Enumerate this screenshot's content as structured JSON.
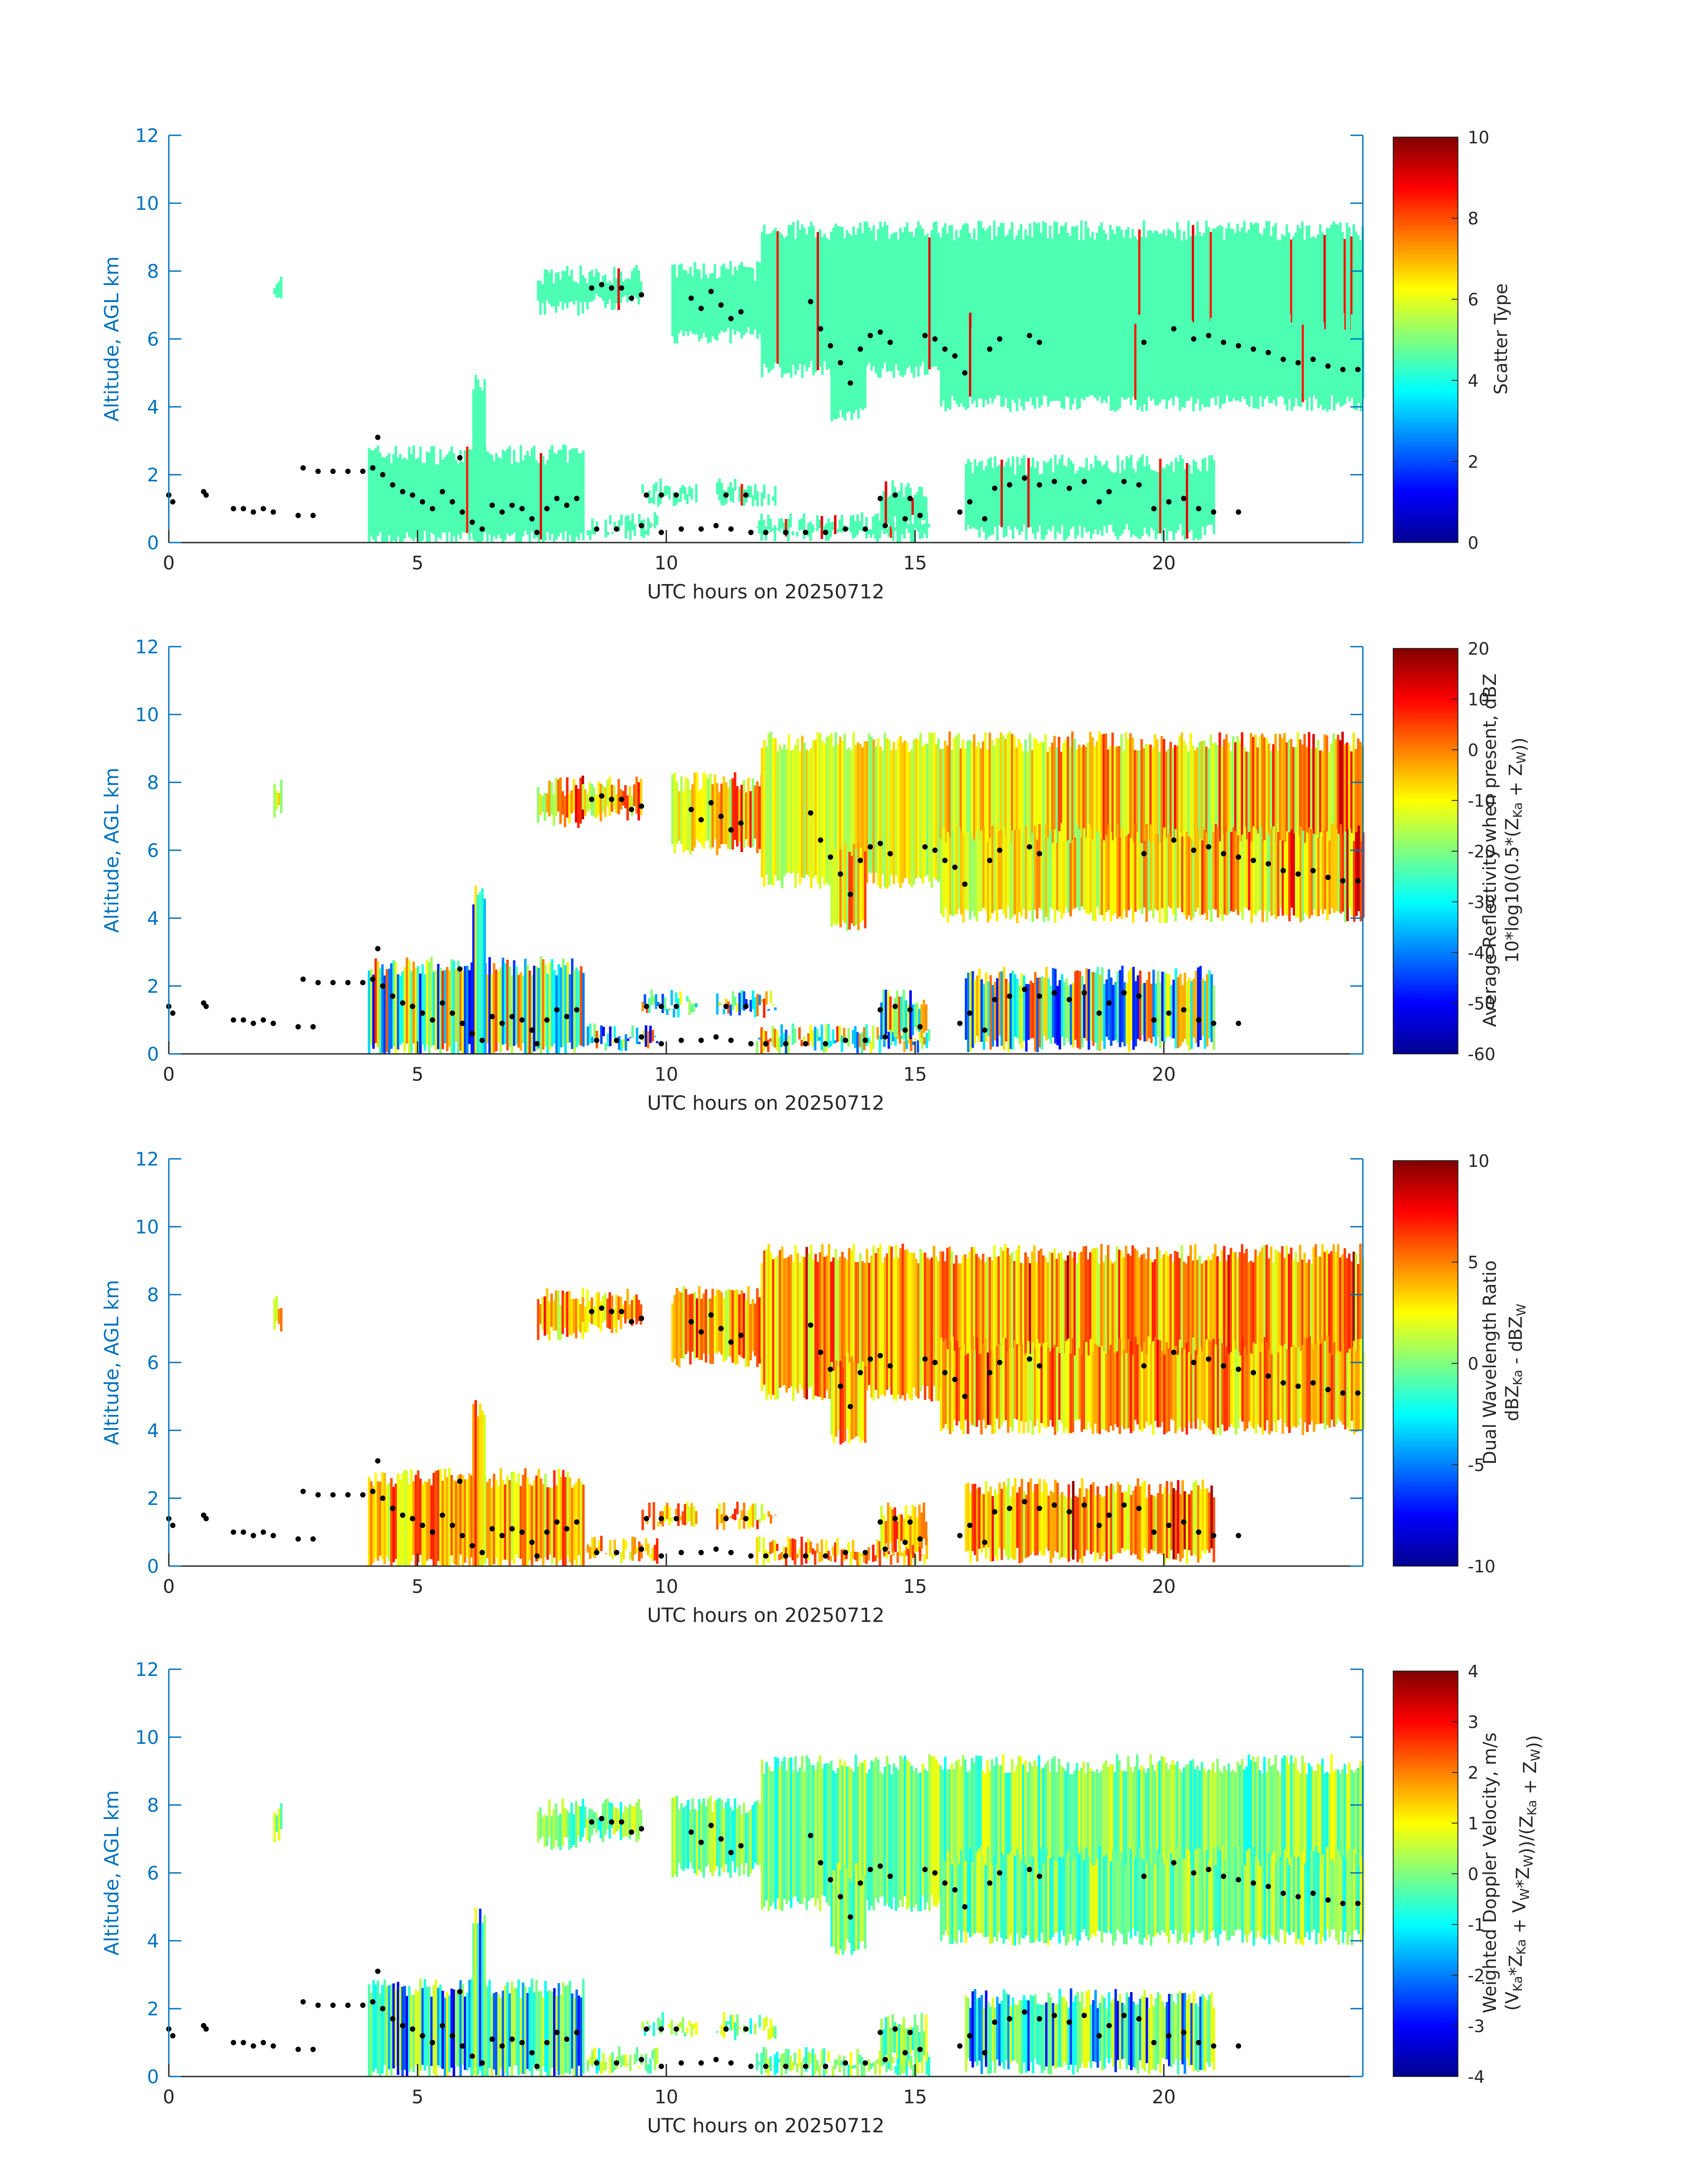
{
  "chart_data": [
    {
      "type": "heatmap",
      "panel": 1,
      "xlabel": "UTC hours on 20250712",
      "ylabel": "Altitude, AGL km",
      "xlim": [
        0,
        24
      ],
      "ylim": [
        0,
        12
      ],
      "xticks": [
        0,
        5,
        10,
        15,
        20
      ],
      "yticks": [
        0,
        2,
        4,
        6,
        8,
        10,
        12
      ],
      "colorbar": {
        "label_lines": [
          "Scatter Type"
        ],
        "range": [
          0,
          10
        ],
        "ticks": [
          0,
          2,
          4,
          6,
          8,
          10
        ],
        "colormap": "jet"
      },
      "dominant_value": 4.5,
      "overlay": "black dots marking cloud layer heights"
    },
    {
      "type": "heatmap",
      "panel": 2,
      "xlabel": "UTC hours on 20250712",
      "ylabel": "Altitude, AGL km",
      "xlim": [
        0,
        24
      ],
      "ylim": [
        0,
        12
      ],
      "xticks": [
        0,
        5,
        10,
        15,
        20
      ],
      "yticks": [
        0,
        2,
        4,
        6,
        8,
        10,
        12
      ],
      "colorbar": {
        "label_lines": [
          "Average Reflectivity when present, dBZ",
          "10*log10(0.5*(Z_Ka + Z_W))"
        ],
        "range": [
          -60,
          20
        ],
        "ticks": [
          -60,
          -50,
          -40,
          -30,
          -20,
          -10,
          0,
          10,
          20
        ],
        "colormap": "jet"
      },
      "overlay": "black dots marking cloud layer heights"
    },
    {
      "type": "heatmap",
      "panel": 3,
      "xlabel": "UTC hours on 20250712",
      "ylabel": "Altitude, AGL km",
      "xlim": [
        0,
        24
      ],
      "ylim": [
        0,
        12
      ],
      "xticks": [
        0,
        5,
        10,
        15,
        20
      ],
      "yticks": [
        0,
        2,
        4,
        6,
        8,
        10,
        12
      ],
      "colorbar": {
        "label_lines": [
          "Dual Wavelength Ratio",
          "dBZ_Ka - dBZ_W"
        ],
        "range": [
          -10,
          10
        ],
        "ticks": [
          -10,
          -5,
          0,
          5,
          10
        ],
        "colormap": "jet"
      },
      "overlay": "black dots marking cloud layer heights"
    },
    {
      "type": "heatmap",
      "panel": 4,
      "xlabel": "UTC hours on 20250712",
      "ylabel": "Altitude, AGL km",
      "xlim": [
        0,
        24
      ],
      "ylim": [
        0,
        12
      ],
      "xticks": [
        0,
        5,
        10,
        15,
        20
      ],
      "yticks": [
        0,
        2,
        4,
        6,
        8,
        10,
        12
      ],
      "colorbar": {
        "label_lines": [
          "Weighted Doppler Velocity, m/s",
          "(V_Ka*Z_Ka + V_W*Z_W))/(Z_Ka + Z_W))"
        ],
        "range": [
          -4,
          4
        ],
        "ticks": [
          -4,
          -3,
          -2,
          -1,
          0,
          1,
          2,
          3,
          4
        ],
        "colormap": "jet"
      },
      "overlay": "black dots marking cloud layer heights"
    }
  ],
  "cloud_regions": [
    {
      "t": [
        2.1,
        2.25
      ],
      "base": 7.0,
      "top": 7.8
    },
    {
      "t": [
        4.0,
        8.35
      ],
      "base": 0.0,
      "top": 2.6
    },
    {
      "t": [
        6.1,
        6.35
      ],
      "base": 0.0,
      "top": 4.7
    },
    {
      "t": [
        7.4,
        8.3
      ],
      "base": 6.8,
      "top": 7.9
    },
    {
      "t": [
        8.3,
        9.5
      ],
      "base": 7.0,
      "top": 7.9
    },
    {
      "t": [
        10.1,
        11.9
      ],
      "base": 6.0,
      "top": 8.0
    },
    {
      "t": [
        11.9,
        24.0
      ],
      "base": 5.0,
      "top": 9.2
    },
    {
      "t": [
        13.3,
        14.0
      ],
      "base": 3.7,
      "top": 6.0
    },
    {
      "t": [
        15.5,
        24.0
      ],
      "base": 4.0,
      "top": 6.5
    },
    {
      "t": [
        8.4,
        9.8
      ],
      "base": 0.2,
      "top": 0.6
    },
    {
      "t": [
        9.5,
        10.6
      ],
      "base": 1.2,
      "top": 1.6
    },
    {
      "t": [
        11.0,
        12.2
      ],
      "base": 1.2,
      "top": 1.6
    },
    {
      "t": [
        11.8,
        15.3
      ],
      "base": 0.1,
      "top": 0.6
    },
    {
      "t": [
        14.3,
        15.2
      ],
      "base": 0.5,
      "top": 1.6
    },
    {
      "t": [
        16.0,
        21.0
      ],
      "base": 0.2,
      "top": 2.3
    }
  ],
  "layer_dots": [
    {
      "t": 0.0,
      "h": 1.4
    },
    {
      "t": 0.08,
      "h": 1.2
    },
    {
      "t": 0.7,
      "h": 1.5
    },
    {
      "t": 0.75,
      "h": 1.4
    },
    {
      "t": 1.3,
      "h": 1.0
    },
    {
      "t": 1.5,
      "h": 1.0
    },
    {
      "t": 1.7,
      "h": 0.9
    },
    {
      "t": 1.9,
      "h": 1.0
    },
    {
      "t": 2.1,
      "h": 0.9
    },
    {
      "t": 2.6,
      "h": 0.8
    },
    {
      "t": 2.9,
      "h": 0.8
    },
    {
      "t": 2.7,
      "h": 2.2
    },
    {
      "t": 3.0,
      "h": 2.1
    },
    {
      "t": 3.3,
      "h": 2.1
    },
    {
      "t": 3.6,
      "h": 2.1
    },
    {
      "t": 3.9,
      "h": 2.1
    },
    {
      "t": 4.1,
      "h": 2.2
    },
    {
      "t": 4.2,
      "h": 3.1
    },
    {
      "t": 4.3,
      "h": 2.0
    },
    {
      "t": 4.5,
      "h": 1.7
    },
    {
      "t": 4.7,
      "h": 1.5
    },
    {
      "t": 4.9,
      "h": 1.4
    },
    {
      "t": 5.1,
      "h": 1.2
    },
    {
      "t": 5.3,
      "h": 1.0
    },
    {
      "t": 5.5,
      "h": 1.5
    },
    {
      "t": 5.7,
      "h": 1.2
    },
    {
      "t": 5.85,
      "h": 2.5
    },
    {
      "t": 5.9,
      "h": 0.9
    },
    {
      "t": 6.1,
      "h": 0.6
    },
    {
      "t": 6.3,
      "h": 0.4
    },
    {
      "t": 6.5,
      "h": 1.1
    },
    {
      "t": 6.7,
      "h": 0.9
    },
    {
      "t": 6.9,
      "h": 1.1
    },
    {
      "t": 7.1,
      "h": 1.0
    },
    {
      "t": 7.3,
      "h": 0.7
    },
    {
      "t": 7.4,
      "h": 0.3
    },
    {
      "t": 7.6,
      "h": 1.0
    },
    {
      "t": 7.8,
      "h": 1.3
    },
    {
      "t": 8.0,
      "h": 1.1
    },
    {
      "t": 8.2,
      "h": 1.3
    },
    {
      "t": 8.5,
      "h": 7.5
    },
    {
      "t": 8.7,
      "h": 7.6
    },
    {
      "t": 8.9,
      "h": 7.5
    },
    {
      "t": 9.1,
      "h": 7.5
    },
    {
      "t": 9.3,
      "h": 7.2
    },
    {
      "t": 9.5,
      "h": 7.3
    },
    {
      "t": 8.6,
      "h": 0.4
    },
    {
      "t": 9.0,
      "h": 0.4
    },
    {
      "t": 9.5,
      "h": 0.5
    },
    {
      "t": 9.9,
      "h": 0.3
    },
    {
      "t": 9.6,
      "h": 1.4
    },
    {
      "t": 9.9,
      "h": 1.4
    },
    {
      "t": 10.2,
      "h": 1.4
    },
    {
      "t": 10.3,
      "h": 0.4
    },
    {
      "t": 10.7,
      "h": 0.4
    },
    {
      "t": 11.0,
      "h": 0.5
    },
    {
      "t": 11.3,
      "h": 0.4
    },
    {
      "t": 10.5,
      "h": 7.2
    },
    {
      "t": 10.7,
      "h": 6.9
    },
    {
      "t": 10.9,
      "h": 7.4
    },
    {
      "t": 11.1,
      "h": 7.0
    },
    {
      "t": 11.3,
      "h": 6.6
    },
    {
      "t": 11.5,
      "h": 6.8
    },
    {
      "t": 11.2,
      "h": 1.4
    },
    {
      "t": 11.6,
      "h": 1.4
    },
    {
      "t": 11.7,
      "h": 0.3
    },
    {
      "t": 12.0,
      "h": 0.3
    },
    {
      "t": 12.4,
      "h": 0.3
    },
    {
      "t": 12.8,
      "h": 0.3
    },
    {
      "t": 13.2,
      "h": 0.3
    },
    {
      "t": 13.6,
      "h": 0.4
    },
    {
      "t": 14.0,
      "h": 0.4
    },
    {
      "t": 14.4,
      "h": 0.5
    },
    {
      "t": 14.8,
      "h": 0.7
    },
    {
      "t": 15.1,
      "h": 0.8
    },
    {
      "t": 14.3,
      "h": 1.3
    },
    {
      "t": 14.6,
      "h": 1.4
    },
    {
      "t": 14.9,
      "h": 1.3
    },
    {
      "t": 12.9,
      "h": 7.1
    },
    {
      "t": 13.1,
      "h": 6.3
    },
    {
      "t": 13.3,
      "h": 5.8
    },
    {
      "t": 13.5,
      "h": 5.3
    },
    {
      "t": 13.7,
      "h": 4.7
    },
    {
      "t": 13.9,
      "h": 5.7
    },
    {
      "t": 14.1,
      "h": 6.1
    },
    {
      "t": 14.3,
      "h": 6.2
    },
    {
      "t": 14.5,
      "h": 5.9
    },
    {
      "t": 15.2,
      "h": 6.1
    },
    {
      "t": 15.4,
      "h": 6.0
    },
    {
      "t": 15.6,
      "h": 5.7
    },
    {
      "t": 15.8,
      "h": 5.5
    },
    {
      "t": 16.0,
      "h": 5.0
    },
    {
      "t": 16.5,
      "h": 5.7
    },
    {
      "t": 16.7,
      "h": 6.0
    },
    {
      "t": 17.3,
      "h": 6.1
    },
    {
      "t": 17.5,
      "h": 5.9
    },
    {
      "t": 15.9,
      "h": 0.9
    },
    {
      "t": 16.1,
      "h": 1.2
    },
    {
      "t": 16.4,
      "h": 0.7
    },
    {
      "t": 16.6,
      "h": 1.6
    },
    {
      "t": 16.9,
      "h": 1.7
    },
    {
      "t": 17.2,
      "h": 1.9
    },
    {
      "t": 17.5,
      "h": 1.7
    },
    {
      "t": 17.8,
      "h": 1.8
    },
    {
      "t": 18.1,
      "h": 1.6
    },
    {
      "t": 18.4,
      "h": 1.8
    },
    {
      "t": 18.7,
      "h": 1.2
    },
    {
      "t": 18.9,
      "h": 1.5
    },
    {
      "t": 19.2,
      "h": 1.8
    },
    {
      "t": 19.5,
      "h": 1.7
    },
    {
      "t": 19.8,
      "h": 1.0
    },
    {
      "t": 20.1,
      "h": 1.2
    },
    {
      "t": 20.4,
      "h": 1.3
    },
    {
      "t": 20.7,
      "h": 1.0
    },
    {
      "t": 21.0,
      "h": 0.9
    },
    {
      "t": 21.5,
      "h": 0.9
    },
    {
      "t": 19.6,
      "h": 5.9
    },
    {
      "t": 20.2,
      "h": 6.3
    },
    {
      "t": 20.6,
      "h": 6.0
    },
    {
      "t": 20.9,
      "h": 6.1
    },
    {
      "t": 21.2,
      "h": 5.9
    },
    {
      "t": 21.5,
      "h": 5.8
    },
    {
      "t": 21.8,
      "h": 5.7
    },
    {
      "t": 22.1,
      "h": 5.6
    },
    {
      "t": 22.4,
      "h": 5.4
    },
    {
      "t": 22.7,
      "h": 5.3
    },
    {
      "t": 23.0,
      "h": 5.4
    },
    {
      "t": 23.3,
      "h": 5.2
    },
    {
      "t": 23.6,
      "h": 5.1
    },
    {
      "t": 23.9,
      "h": 5.1
    }
  ]
}
